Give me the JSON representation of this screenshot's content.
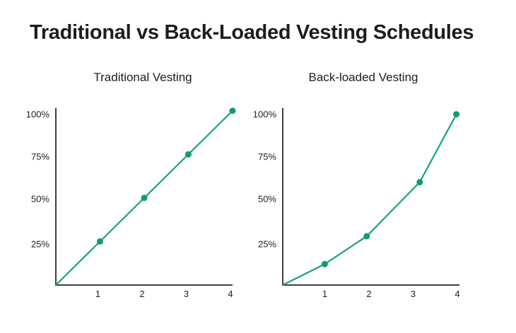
{
  "page": {
    "title": "Traditional vs Back-Loaded Vesting Schedules",
    "background": "#ffffff"
  },
  "colors": {
    "title_text": "#1d1d1d",
    "label_text": "#1e1e1e",
    "axis": "#3f3f3f",
    "line": "#18a375",
    "marker": "#0e9c6c"
  },
  "chart_data": [
    {
      "type": "line",
      "title": "Traditional Vesting",
      "xlabel": "",
      "ylabel": "",
      "x": [
        0,
        1,
        2,
        3,
        4
      ],
      "values": [
        0,
        25,
        50,
        75,
        100
      ],
      "unit": "%",
      "xlim": [
        0,
        4
      ],
      "ylim": [
        0,
        100
      ],
      "x_ticks": [
        "1",
        "2",
        "3",
        "4"
      ],
      "y_ticks": [
        "100%",
        "75%",
        "50%",
        "25%"
      ],
      "y_tick_values": [
        100,
        75,
        50,
        25
      ],
      "grid": false,
      "legend": "none",
      "marker": "circle",
      "plot_points": [
        [
          0,
          0
        ],
        [
          1,
          25
        ],
        [
          2,
          50
        ],
        [
          3,
          75
        ],
        [
          4,
          100
        ]
      ]
    },
    {
      "type": "line",
      "title": "Back-loaded Vesting",
      "xlabel": "",
      "ylabel": "",
      "x": [
        0,
        1,
        2,
        3,
        4
      ],
      "values": [
        0,
        12,
        28,
        59,
        98
      ],
      "unit": "%",
      "xlim": [
        0,
        4
      ],
      "ylim": [
        0,
        100
      ],
      "x_ticks": [
        "1",
        "2",
        "3",
        "4"
      ],
      "y_ticks": [
        "100%",
        "75%",
        "50%",
        "25%"
      ],
      "y_tick_values": [
        100,
        75,
        50,
        25
      ],
      "grid": false,
      "legend": "none",
      "marker": "circle",
      "plot_points": [
        [
          0,
          0
        ],
        [
          0.95,
          12
        ],
        [
          1.9,
          28
        ],
        [
          3.1,
          59
        ],
        [
          3.93,
          98
        ]
      ]
    }
  ]
}
